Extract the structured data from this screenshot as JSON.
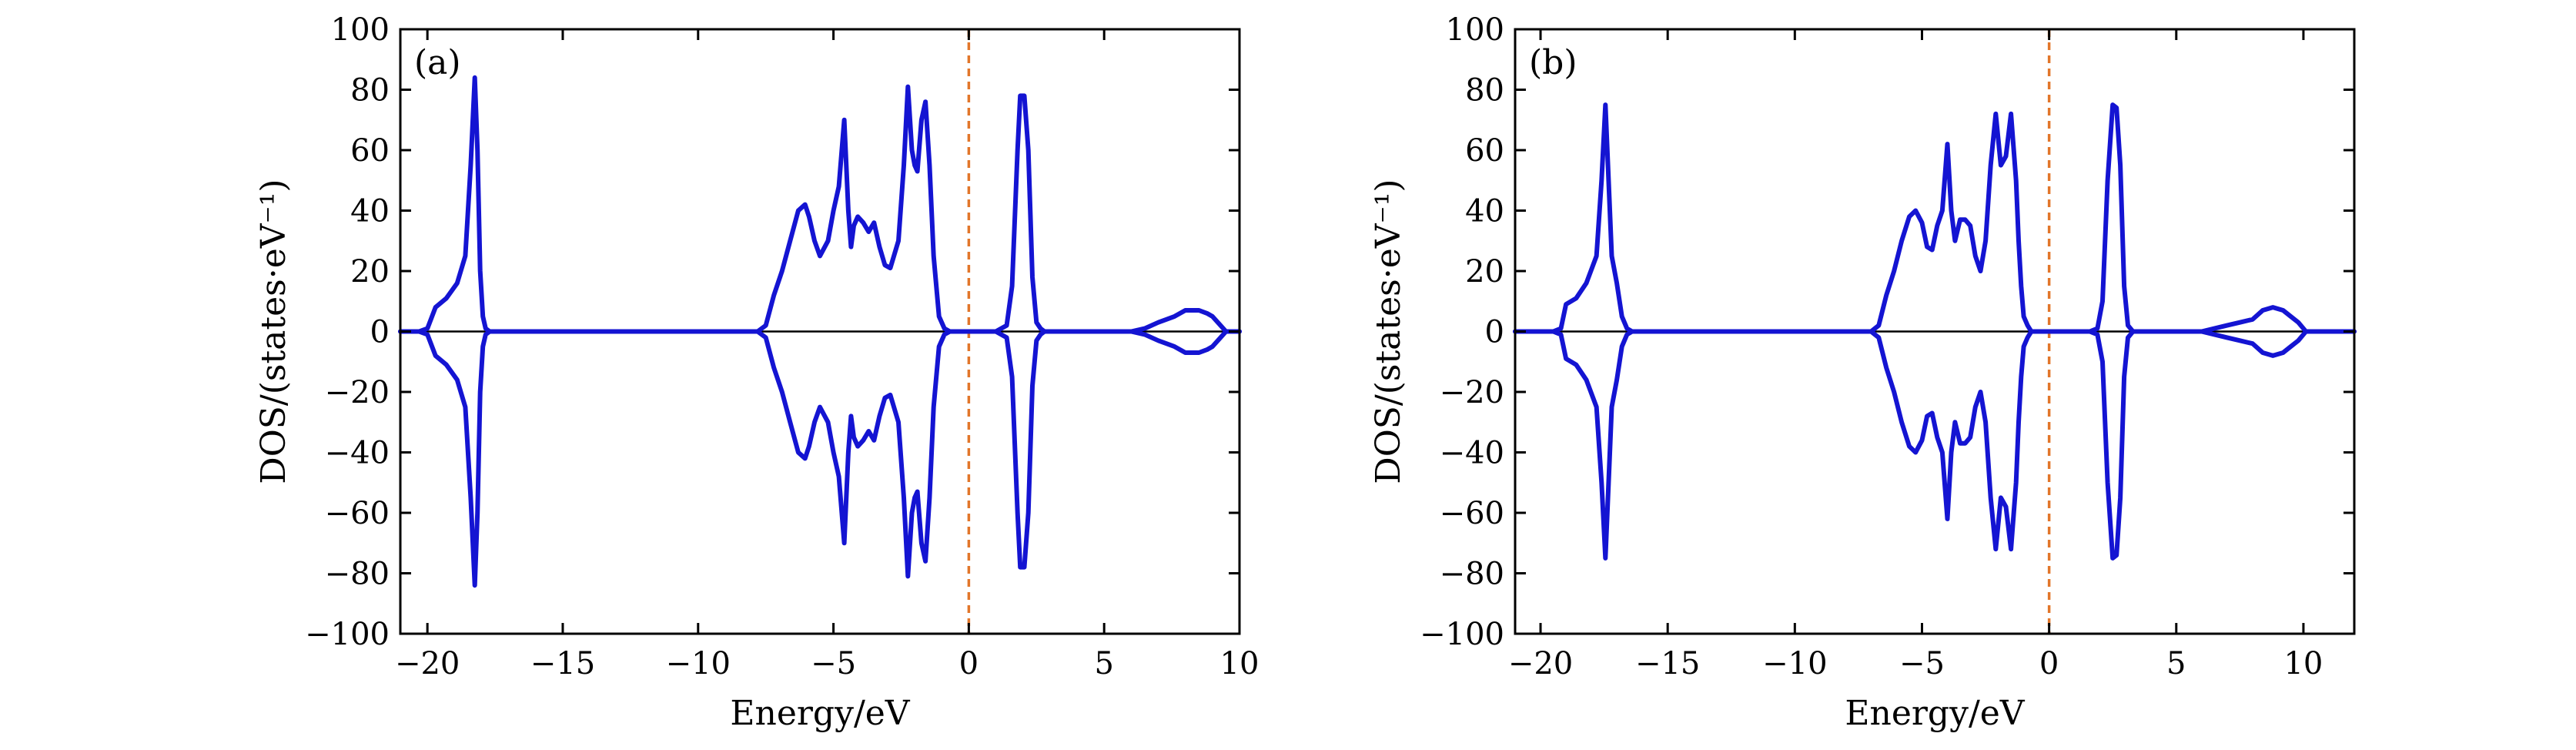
{
  "chart_data": [
    {
      "type": "line",
      "panel_label": "(a)",
      "xlabel": "Energy/eV",
      "ylabel": "DOS/(states·eV⁻¹)",
      "xlim": [
        -21,
        10
      ],
      "ylim": [
        -100,
        100
      ],
      "xticks": [
        -20,
        -15,
        -10,
        -5,
        0,
        5,
        10
      ],
      "yticks": [
        -100,
        -80,
        -60,
        -40,
        -20,
        0,
        20,
        40,
        60,
        80,
        100
      ],
      "xtick_labels": [
        "−20",
        "−15",
        "−10",
        "−5",
        "0",
        "5",
        "10"
      ],
      "ytick_labels": [
        "−100",
        "−80",
        "−60",
        "−40",
        "−20",
        "0",
        "20",
        "40",
        "60",
        "80",
        "100"
      ],
      "fermi_level": 0,
      "line_color": "#1414d2",
      "fermi_color": "#e2762a",
      "series": [
        {
          "x": [
            -21.0,
            -20.3,
            -20.0,
            -19.7,
            -19.3,
            -18.9,
            -18.6,
            -18.4,
            -18.25,
            -18.15,
            -18.05,
            -17.95,
            -17.85,
            -17.7,
            -17.5,
            -17.2,
            -15.0,
            -10.0,
            -7.8,
            -7.5,
            -7.2,
            -6.9,
            -6.6,
            -6.3,
            -6.05,
            -5.9,
            -5.7,
            -5.5,
            -5.2,
            -5.0,
            -4.8,
            -4.6,
            -4.45,
            -4.35,
            -4.25,
            -4.1,
            -3.9,
            -3.7,
            -3.5,
            -3.3,
            -3.1,
            -2.9,
            -2.6,
            -2.4,
            -2.25,
            -2.1,
            -2.0,
            -1.9,
            -1.75,
            -1.6,
            -1.45,
            -1.3,
            -1.1,
            -0.9,
            -0.7,
            -0.5,
            0.0,
            1.0,
            1.4,
            1.6,
            1.8,
            1.9,
            2.05,
            2.2,
            2.35,
            2.5,
            2.65,
            2.8,
            3.0,
            5.0,
            6.0,
            6.5,
            7.0,
            7.3,
            7.6,
            8.0,
            8.5,
            8.8,
            9.0,
            9.3,
            9.5,
            10.0
          ],
          "y": [
            0,
            0,
            1,
            8,
            11,
            16,
            25,
            55,
            84,
            60,
            20,
            5,
            1,
            0,
            0,
            0,
            0,
            0,
            0,
            2,
            12,
            20,
            30,
            40,
            42,
            38,
            30,
            25,
            30,
            40,
            48,
            70,
            40,
            28,
            35,
            38,
            36,
            33,
            36,
            28,
            22,
            21,
            30,
            55,
            81,
            60,
            55,
            53,
            70,
            76,
            55,
            25,
            5,
            1,
            0,
            0,
            0,
            0,
            2,
            15,
            60,
            78,
            78,
            60,
            18,
            3,
            1,
            0,
            0,
            0,
            0,
            1,
            3,
            4,
            5,
            7,
            7,
            6,
            5,
            2,
            0,
            0
          ],
          "y_lower": [
            0,
            0,
            -1,
            -8,
            -11,
            -16,
            -25,
            -55,
            -84,
            -60,
            -20,
            -5,
            -1,
            0,
            0,
            0,
            0,
            0,
            0,
            -2,
            -12,
            -20,
            -30,
            -40,
            -42,
            -38,
            -30,
            -25,
            -30,
            -40,
            -48,
            -70,
            -40,
            -28,
            -35,
            -38,
            -36,
            -33,
            -36,
            -28,
            -22,
            -21,
            -30,
            -55,
            -81,
            -60,
            -55,
            -53,
            -70,
            -76,
            -55,
            -25,
            -5,
            -1,
            0,
            0,
            0,
            0,
            -2,
            -15,
            -60,
            -78,
            -78,
            -60,
            -18,
            -3,
            -1,
            0,
            0,
            0,
            0,
            -1,
            -3,
            -4,
            -5,
            -7,
            -7,
            -6,
            -5,
            -2,
            0,
            0
          ]
        }
      ]
    },
    {
      "type": "line",
      "panel_label": "(b)",
      "xlabel": "Energy/eV",
      "ylabel": "DOS/(states·eV⁻¹)",
      "xlim": [
        -21,
        12
      ],
      "ylim": [
        -100,
        100
      ],
      "xticks": [
        -20,
        -15,
        -10,
        -5,
        0,
        5,
        10
      ],
      "yticks": [
        -100,
        -80,
        -60,
        -40,
        -20,
        0,
        20,
        40,
        60,
        80,
        100
      ],
      "xtick_labels": [
        "−20",
        "−15",
        "−10",
        "−5",
        "0",
        "5",
        "10"
      ],
      "ytick_labels": [
        "−100",
        "−80",
        "−60",
        "−40",
        "−20",
        "0",
        "20",
        "40",
        "60",
        "80",
        "100"
      ],
      "fermi_level": 0,
      "line_color": "#1414d2",
      "fermi_color": "#e2762a",
      "series": [
        {
          "x": [
            -21.0,
            -19.5,
            -19.2,
            -19.0,
            -18.6,
            -18.2,
            -17.8,
            -17.6,
            -17.45,
            -17.35,
            -17.2,
            -17.0,
            -16.8,
            -16.6,
            -16.4,
            -15.0,
            -10.0,
            -7.0,
            -6.7,
            -6.4,
            -6.1,
            -5.8,
            -5.5,
            -5.25,
            -5.0,
            -4.8,
            -4.6,
            -4.4,
            -4.2,
            -4.0,
            -3.85,
            -3.7,
            -3.5,
            -3.3,
            -3.1,
            -2.9,
            -2.7,
            -2.5,
            -2.3,
            -2.1,
            -1.9,
            -1.7,
            -1.5,
            -1.3,
            -1.2,
            -1.1,
            -1.0,
            -0.85,
            -0.7,
            -0.5,
            -0.3,
            0.0,
            0.2,
            0.5,
            1.0,
            1.6,
            1.9,
            2.1,
            2.3,
            2.5,
            2.65,
            2.8,
            2.95,
            3.1,
            3.3,
            3.5,
            3.8,
            5.0,
            6.0,
            6.5,
            7.0,
            7.5,
            8.0,
            8.4,
            8.8,
            9.2,
            9.5,
            9.8,
            10.1,
            10.5,
            12.0
          ],
          "y": [
            0,
            0,
            1,
            9,
            11,
            16,
            25,
            50,
            75,
            55,
            25,
            16,
            5,
            1,
            0,
            0,
            0,
            0,
            2,
            12,
            20,
            30,
            38,
            40,
            36,
            28,
            27,
            35,
            40,
            62,
            40,
            30,
            37,
            37,
            35,
            25,
            20,
            30,
            55,
            72,
            55,
            58,
            72,
            50,
            30,
            15,
            5,
            2,
            0,
            0,
            0,
            0,
            0,
            0,
            0,
            0,
            1,
            10,
            50,
            75,
            74,
            55,
            15,
            2,
            0,
            0,
            0,
            0,
            0,
            1,
            2,
            3,
            4,
            7,
            8,
            7,
            5,
            3,
            0,
            0,
            0
          ],
          "y_lower": [
            0,
            0,
            -1,
            -9,
            -11,
            -16,
            -25,
            -50,
            -75,
            -55,
            -25,
            -16,
            -5,
            -1,
            0,
            0,
            0,
            0,
            -2,
            -12,
            -20,
            -30,
            -38,
            -40,
            -36,
            -28,
            -27,
            -35,
            -40,
            -62,
            -40,
            -30,
            -37,
            -37,
            -35,
            -25,
            -20,
            -30,
            -55,
            -72,
            -55,
            -58,
            -72,
            -50,
            -30,
            -15,
            -5,
            -2,
            0,
            0,
            0,
            0,
            0,
            0,
            0,
            0,
            -1,
            -10,
            -50,
            -75,
            -74,
            -55,
            -15,
            -2,
            0,
            0,
            0,
            0,
            0,
            -1,
            -2,
            -3,
            -4,
            -7,
            -8,
            -7,
            -5,
            -3,
            0,
            0,
            0
          ]
        }
      ]
    }
  ]
}
